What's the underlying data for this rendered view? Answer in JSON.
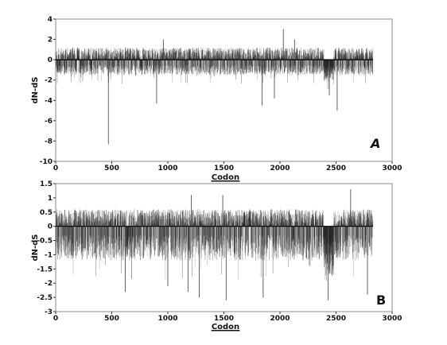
{
  "chart_data": [
    {
      "panel": "A",
      "type": "bar",
      "xlabel": "Codon",
      "ylabel": "dN-dS",
      "xlim": [
        0,
        3000
      ],
      "ylim": [
        -10,
        4
      ],
      "xticks": [
        0,
        500,
        1000,
        1500,
        2000,
        2500,
        3000
      ],
      "yticks": [
        4,
        2,
        0,
        -2,
        -4,
        -6,
        -8,
        -10
      ],
      "codon_count": 2830,
      "baseline": 0,
      "typical_positive_range": [
        0.3,
        1.2
      ],
      "typical_negative_range": [
        -0.5,
        -1.5
      ],
      "notable_values": [
        {
          "codon": 470,
          "value": -8.3
        },
        {
          "codon": 900,
          "value": -4.3
        },
        {
          "codon": 1840,
          "value": -4.5
        },
        {
          "codon": 1950,
          "value": -3.8
        },
        {
          "codon": 2030,
          "value": 3.0
        },
        {
          "codon": 2130,
          "value": 2.0
        },
        {
          "codon": 2440,
          "value": -3.5
        },
        {
          "codon": 2510,
          "value": -5.0
        },
        {
          "codon": 960,
          "value": 2.0
        }
      ],
      "grid": false,
      "legend": "none"
    },
    {
      "panel": "B",
      "type": "bar",
      "xlabel": "Codon",
      "ylabel": "dN-dS",
      "xlim": [
        0,
        3000
      ],
      "ylim": [
        -3,
        1.5
      ],
      "xticks": [
        0,
        500,
        1000,
        1500,
        2000,
        2500,
        3000
      ],
      "yticks": [
        1.5,
        1,
        0.5,
        0,
        -0.5,
        -1,
        -1.5,
        -2,
        -2.5,
        -3
      ],
      "codon_count": 2830,
      "baseline": 0,
      "typical_positive_range": [
        0.2,
        0.6
      ],
      "typical_negative_range": [
        -0.3,
        -1.2
      ],
      "notable_values": [
        {
          "codon": 620,
          "value": -2.3
        },
        {
          "codon": 1000,
          "value": -2.1
        },
        {
          "codon": 1180,
          "value": -2.3
        },
        {
          "codon": 1280,
          "value": -2.5
        },
        {
          "codon": 1520,
          "value": -2.6
        },
        {
          "codon": 1850,
          "value": -2.5
        },
        {
          "codon": 2430,
          "value": -2.6
        },
        {
          "codon": 2780,
          "value": -2.4
        },
        {
          "codon": 2630,
          "value": 1.3
        },
        {
          "codon": 1210,
          "value": 1.1
        },
        {
          "codon": 1490,
          "value": 1.1
        }
      ],
      "grid": false,
      "legend": "none"
    }
  ],
  "labels": {
    "panel_a": "A",
    "panel_b": "B"
  }
}
